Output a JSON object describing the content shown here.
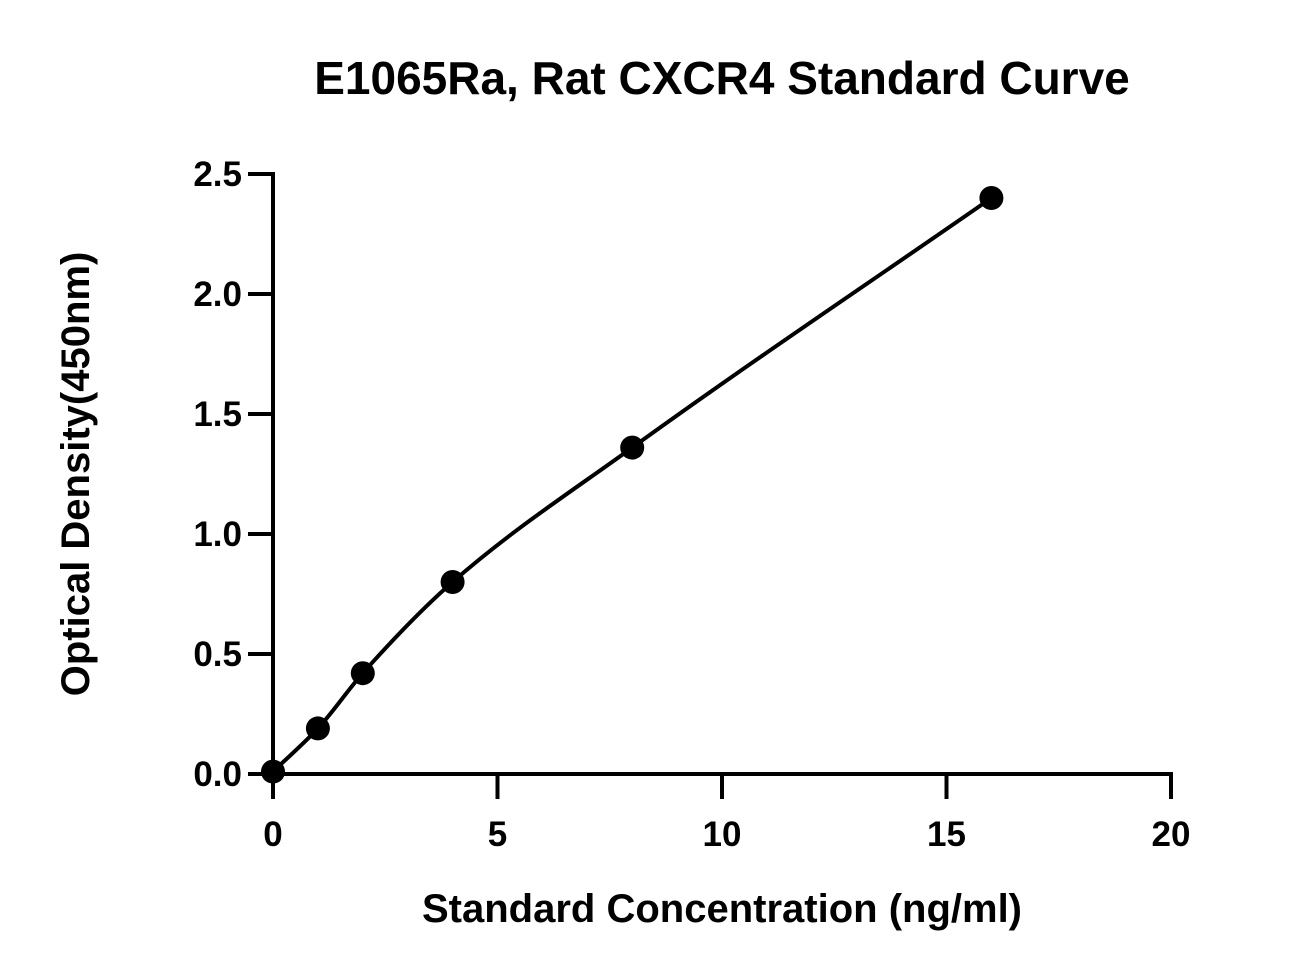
{
  "chart_data": {
    "type": "scatter",
    "title": "E1065Ra, Rat CXCR4 Standard Curve",
    "xlabel": "Standard Concentration (ng/ml)",
    "ylabel": "Optical Density(450nm)",
    "xlim": [
      0,
      20
    ],
    "ylim": [
      0,
      2.5
    ],
    "x_ticks": [
      0,
      5,
      10,
      15,
      20
    ],
    "y_ticks": [
      0.0,
      0.5,
      1.0,
      1.5,
      2.0,
      2.5
    ],
    "x_tick_labels": [
      "0",
      "5",
      "10",
      "15",
      "20"
    ],
    "y_tick_labels": [
      "0.0",
      "0.5",
      "1.0",
      "1.5",
      "2.0",
      "2.5"
    ],
    "grid": false,
    "legend": "none",
    "series": [
      {
        "x": [
          0,
          1,
          2,
          4,
          8,
          16
        ],
        "y": [
          0.01,
          0.19,
          0.42,
          0.8,
          1.36,
          2.4
        ],
        "marker": "circle",
        "color": "#000000"
      }
    ],
    "fit_curve": {
      "type": "smooth",
      "color": "#000000",
      "x_range": [
        0,
        16
      ]
    }
  }
}
